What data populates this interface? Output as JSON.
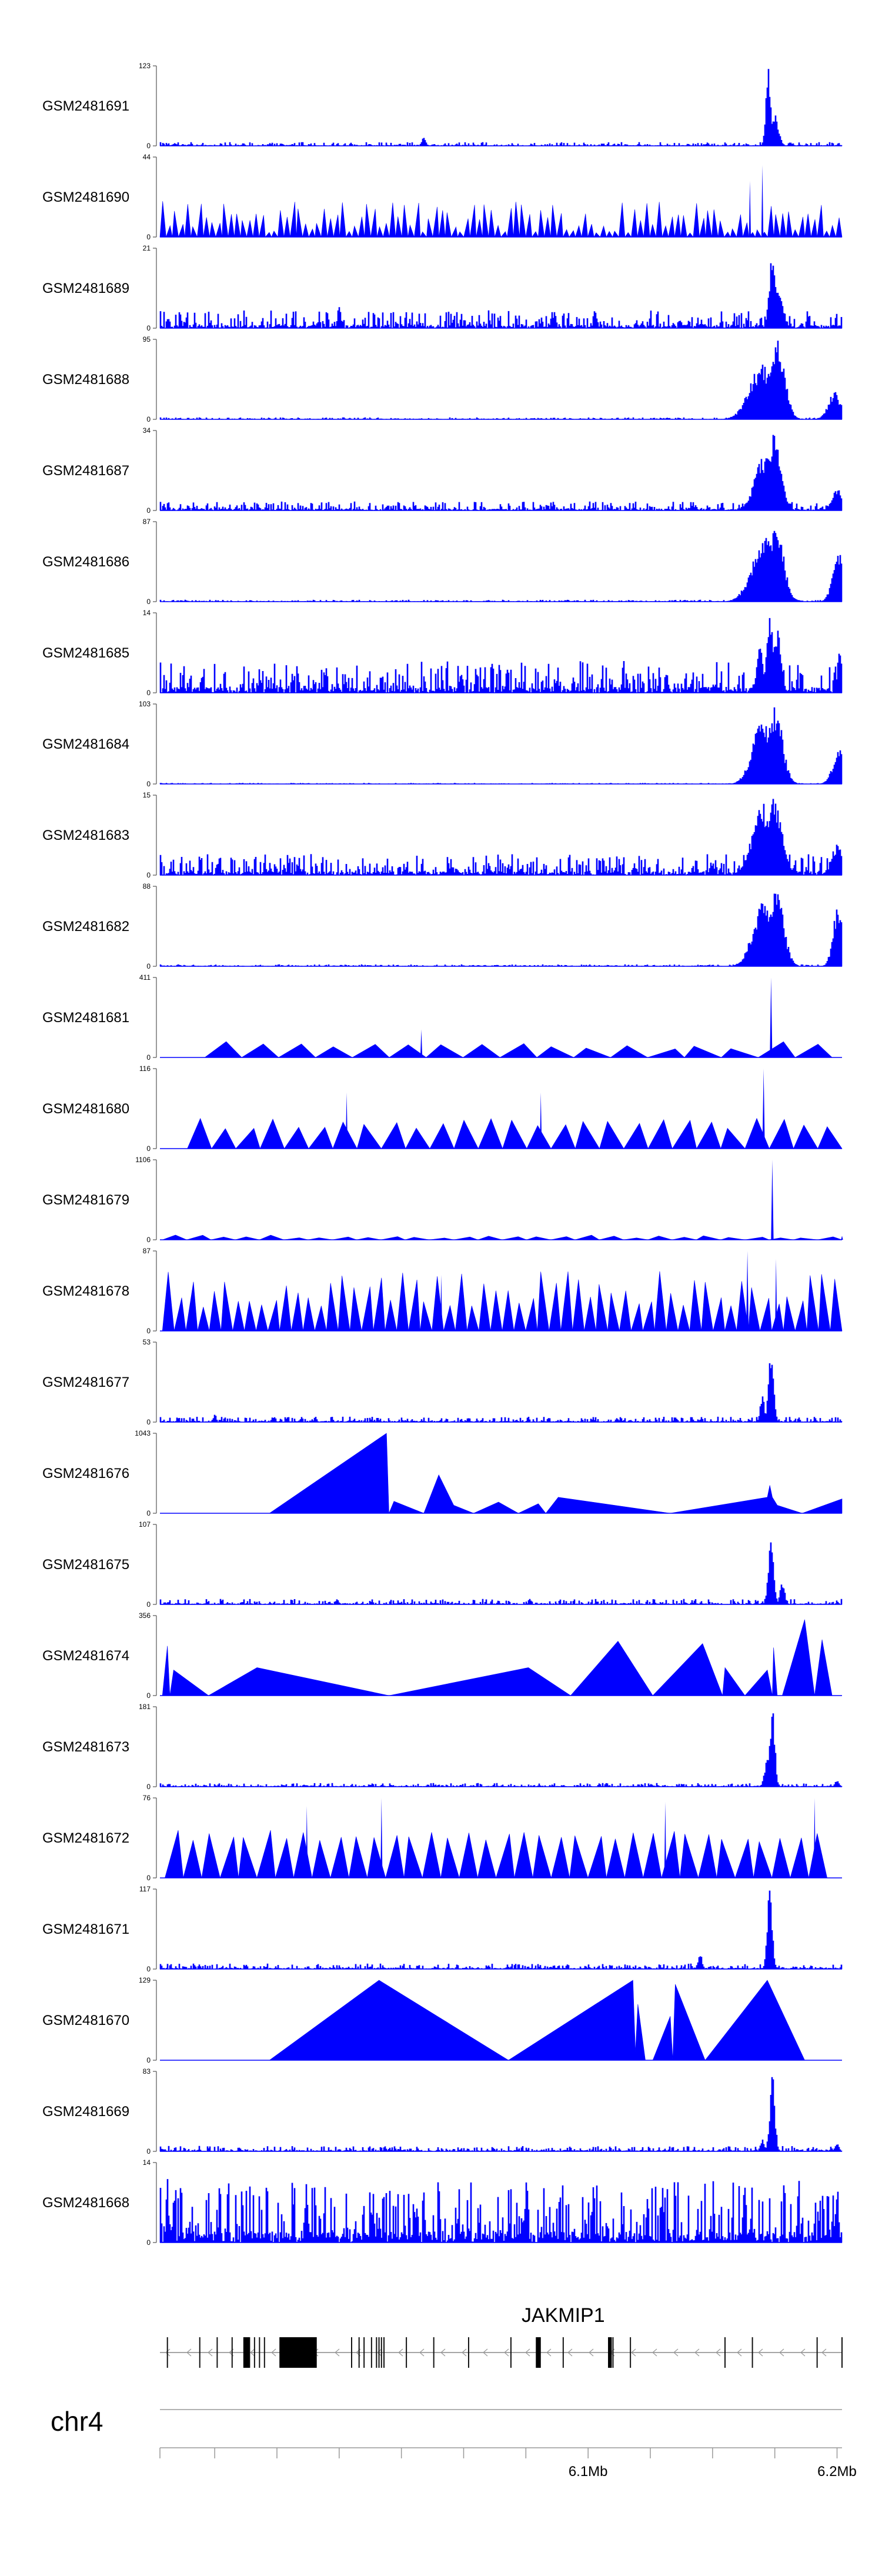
{
  "chart_data": {
    "type": "area",
    "title": "",
    "chromosome": "chr4",
    "region": {
      "start": 5928000,
      "end": 6202000
    },
    "axis": {
      "ticks": [
        5950000,
        5975000,
        6000000,
        6025000,
        6050000,
        6075000,
        6100000,
        6125000,
        6150000,
        6175000,
        6200000
      ],
      "labeled_ticks": [
        {
          "pos": 6100000,
          "label": "6.1Mb"
        },
        {
          "pos": 6200000,
          "label": "6.2Mb"
        }
      ]
    },
    "gene": {
      "name": "JAKMIP1",
      "strand": "-",
      "start": 5928000,
      "end": 6202000,
      "exons": [
        5931000,
        5944000,
        5951000,
        5957000,
        5964000,
        5966000,
        5968000,
        5970000,
        6005000,
        6008000,
        6010000,
        6013000,
        6015000,
        6016000,
        6017000,
        6018000,
        6027000,
        6038000,
        6052000,
        6069000,
        6090000,
        6110000,
        6117000,
        6155000,
        6166000,
        6192000,
        6202000
      ],
      "thick_exons": [
        [
          5961500,
          5964000
        ],
        [
          5976000,
          5991000
        ],
        [
          6079000,
          6081000
        ],
        [
          6108000,
          6109500
        ]
      ]
    },
    "series": [
      {
        "name": "GSM2481691",
        "ymax": 123,
        "mode": "noise",
        "base": 0.02,
        "spikes": [
          [
            6172500,
            1.0,
            1000
          ],
          [
            6175000,
            0.4,
            1500
          ],
          [
            6034000,
            0.1,
            800
          ]
        ]
      },
      {
        "name": "GSM2481690",
        "ymax": 44,
        "mode": "tri",
        "base": 0.0,
        "count": 110,
        "amp": [
          0.05,
          0.45
        ],
        "spikes": [
          [
            6170000,
            0.9,
            400
          ],
          [
            6165000,
            0.7,
            400
          ]
        ]
      },
      {
        "name": "GSM2481689",
        "ymax": 21,
        "mode": "noise",
        "base": 0.1,
        "spikes": [
          [
            6174000,
            1.0,
            1200
          ],
          [
            6176000,
            0.6,
            2000
          ],
          [
            6000000,
            0.35,
            600
          ]
        ]
      },
      {
        "name": "GSM2481688",
        "ymax": 95,
        "mode": "broad",
        "base": 0.01,
        "peaks": [
          [
            6170000,
            0.7,
            5000
          ],
          [
            6176000,
            1.0,
            3000
          ],
          [
            6199000,
            0.35,
            2500
          ]
        ]
      },
      {
        "name": "GSM2481687",
        "ymax": 34,
        "mode": "broad",
        "base": 0.05,
        "peaks": [
          [
            6171000,
            0.7,
            4000
          ],
          [
            6175000,
            1.0,
            2500
          ],
          [
            6200000,
            0.3,
            2000
          ]
        ]
      },
      {
        "name": "GSM2481686",
        "ymax": 87,
        "mode": "broad",
        "base": 0.01,
        "peaks": [
          [
            6171000,
            0.8,
            5000
          ],
          [
            6175500,
            1.0,
            3000
          ],
          [
            6201000,
            0.6,
            2500
          ]
        ]
      },
      {
        "name": "GSM2481685",
        "ymax": 14,
        "mode": "noise",
        "base": 0.18,
        "spikes": [
          [
            6173000,
            1.0,
            1200
          ],
          [
            6176000,
            0.8,
            1500
          ],
          [
            6169000,
            0.7,
            1200
          ],
          [
            6201000,
            0.6,
            800
          ]
        ]
      },
      {
        "name": "GSM2481684",
        "ymax": 103,
        "mode": "broad",
        "base": 0.005,
        "peaks": [
          [
            6170000,
            0.8,
            4000
          ],
          [
            6175000,
            1.0,
            3000
          ],
          [
            6201000,
            0.45,
            2500
          ]
        ]
      },
      {
        "name": "GSM2481683",
        "ymax": 15,
        "mode": "broad",
        "base": 0.12,
        "peaks": [
          [
            6170000,
            0.9,
            4000
          ],
          [
            6175000,
            1.0,
            3000
          ],
          [
            6200000,
            0.4,
            2000
          ]
        ]
      },
      {
        "name": "GSM2481682",
        "ymax": 88,
        "mode": "broad",
        "base": 0.01,
        "peaks": [
          [
            6170000,
            0.8,
            4000
          ],
          [
            6175500,
            1.0,
            3000
          ],
          [
            6200500,
            0.8,
            2000
          ]
        ]
      },
      {
        "name": "GSM2481681",
        "ymax": 411,
        "mode": "tri",
        "base": 0.0,
        "count": 17,
        "amp": [
          0.1,
          0.2
        ],
        "startAt": 5946000,
        "endAt": 6198000,
        "spikes": [
          [
            6173500,
            1.0,
            500
          ],
          [
            6033000,
            0.35,
            400
          ]
        ]
      },
      {
        "name": "GSM2481680",
        "ymax": 116,
        "mode": "tri",
        "base": 0.0,
        "count": 27,
        "amp": [
          0.25,
          0.38
        ],
        "startAt": 5939000,
        "endAt": 6202000,
        "spikes": [
          [
            6170500,
            1.0,
            500
          ],
          [
            6081000,
            0.7,
            400
          ],
          [
            6003000,
            0.7,
            400
          ]
        ]
      },
      {
        "name": "GSM2481679",
        "ymax": 1106,
        "mode": "tri",
        "base": 0.0,
        "count": 28,
        "amp": [
          0.02,
          0.06
        ],
        "startAt": 5929000,
        "endAt": 6202000,
        "spikes": [
          [
            6174000,
            1.0,
            500
          ],
          [
            6202000,
            0.05,
            400
          ]
        ]
      },
      {
        "name": "GSM2481678",
        "ymax": 87,
        "mode": "tri",
        "base": 0.0,
        "count": 58,
        "amp": [
          0.3,
          0.75
        ],
        "startAt": 5929000,
        "endAt": 6202000,
        "spikes": [
          [
            6164000,
            1.0,
            500
          ],
          [
            6175500,
            0.9,
            400
          ],
          [
            6041000,
            0.7,
            400
          ]
        ]
      },
      {
        "name": "GSM2481677",
        "ymax": 53,
        "mode": "noise",
        "base": 0.03,
        "spikes": [
          [
            6173500,
            1.0,
            1000
          ],
          [
            6170000,
            0.35,
            800
          ],
          [
            5950000,
            0.1,
            600
          ]
        ]
      },
      {
        "name": "GSM2481676",
        "ymax": 1043,
        "mode": "poly",
        "base": 0.0,
        "points": [
          [
            5972000,
            0.0
          ],
          [
            6019000,
            1.0
          ],
          [
            6020000,
            0.0
          ],
          [
            6022000,
            0.15
          ],
          [
            6034000,
            0.0
          ],
          [
            6040000,
            0.48
          ],
          [
            6046000,
            0.1
          ],
          [
            6054000,
            0.0
          ],
          [
            6064000,
            0.14
          ],
          [
            6072000,
            0.0
          ],
          [
            6080000,
            0.12
          ],
          [
            6083000,
            0.0
          ],
          [
            6088000,
            0.2
          ],
          [
            6133000,
            0.0
          ],
          [
            6172000,
            0.2
          ],
          [
            6173000,
            0.35
          ],
          [
            6174000,
            0.2
          ],
          [
            6176000,
            0.1
          ],
          [
            6186000,
            0.0
          ],
          [
            6202000,
            0.18
          ]
        ]
      },
      {
        "name": "GSM2481675",
        "ymax": 107,
        "mode": "noise",
        "base": 0.03,
        "spikes": [
          [
            6173500,
            1.0,
            1000
          ],
          [
            6178000,
            0.3,
            900
          ]
        ]
      },
      {
        "name": "GSM2481674",
        "ymax": 356,
        "mode": "poly",
        "base": 0.0,
        "points": [
          [
            5929000,
            0.0
          ],
          [
            5931000,
            0.62
          ],
          [
            5932000,
            0.0
          ],
          [
            5933500,
            0.32
          ],
          [
            5947500,
            0.0
          ],
          [
            5967000,
            0.35
          ],
          [
            6020000,
            0.0
          ],
          [
            6076000,
            0.35
          ],
          [
            6093000,
            0.0
          ],
          [
            6112000,
            0.68
          ],
          [
            6126000,
            0.0
          ],
          [
            6146000,
            0.65
          ],
          [
            6154000,
            0.0
          ],
          [
            6155000,
            0.35
          ],
          [
            6163000,
            0.0
          ],
          [
            6172000,
            0.32
          ],
          [
            6174000,
            0.0
          ],
          [
            6174500,
            0.6
          ],
          [
            6176000,
            0.0
          ],
          [
            6178000,
            0.0
          ],
          [
            6187000,
            0.95
          ],
          [
            6191000,
            0.0
          ],
          [
            6194000,
            0.7
          ],
          [
            6198000,
            0.0
          ]
        ]
      },
      {
        "name": "GSM2481673",
        "ymax": 181,
        "mode": "noise",
        "base": 0.02,
        "spikes": [
          [
            6174000,
            1.0,
            1000
          ],
          [
            6172000,
            0.4,
            1000
          ],
          [
            6200000,
            0.08,
            800
          ]
        ]
      },
      {
        "name": "GSM2481672",
        "ymax": 76,
        "mode": "tri",
        "base": 0.0,
        "count": 36,
        "amp": [
          0.45,
          0.6
        ],
        "startAt": 5930000,
        "endAt": 6196000,
        "spikes": [
          [
            6191000,
            1.0,
            400
          ],
          [
            6017000,
            1.0,
            400
          ],
          [
            5987000,
            0.9,
            400
          ],
          [
            6131000,
            0.95,
            400
          ]
        ]
      },
      {
        "name": "GSM2481671",
        "ymax": 117,
        "mode": "noise",
        "base": 0.03,
        "spikes": [
          [
            6173000,
            1.0,
            1000
          ],
          [
            6145000,
            0.2,
            800
          ]
        ]
      },
      {
        "name": "GSM2481670",
        "ymax": 129,
        "mode": "poly",
        "base": 0.0,
        "points": [
          [
            5972000,
            0.0
          ],
          [
            6016000,
            1.0
          ],
          [
            6068000,
            0.0
          ],
          [
            6118000,
            1.0
          ],
          [
            6119000,
            0.1
          ],
          [
            6120000,
            0.7
          ],
          [
            6123000,
            0.0
          ],
          [
            6126000,
            0.0
          ],
          [
            6133000,
            0.55
          ],
          [
            6134000,
            0.0
          ],
          [
            6135000,
            0.95
          ],
          [
            6147000,
            0.0
          ],
          [
            6172000,
            1.0
          ],
          [
            6187000,
            0.0
          ]
        ]
      },
      {
        "name": "GSM2481669",
        "ymax": 83,
        "mode": "noise",
        "base": 0.03,
        "spikes": [
          [
            6174000,
            1.0,
            1000
          ],
          [
            6170000,
            0.15,
            800
          ],
          [
            6200000,
            0.1,
            800
          ]
        ]
      },
      {
        "name": "GSM2481668",
        "ymax": 14,
        "mode": "noise",
        "base": 0.35,
        "spikes": [
          [
            6200000,
            0.8,
            600
          ],
          [
            6163000,
            0.9,
            500
          ],
          [
            5987000,
            0.8,
            600
          ],
          [
            5931000,
            0.8,
            500
          ]
        ]
      }
    ]
  },
  "tick_labels": {
    "ymin": "0"
  }
}
